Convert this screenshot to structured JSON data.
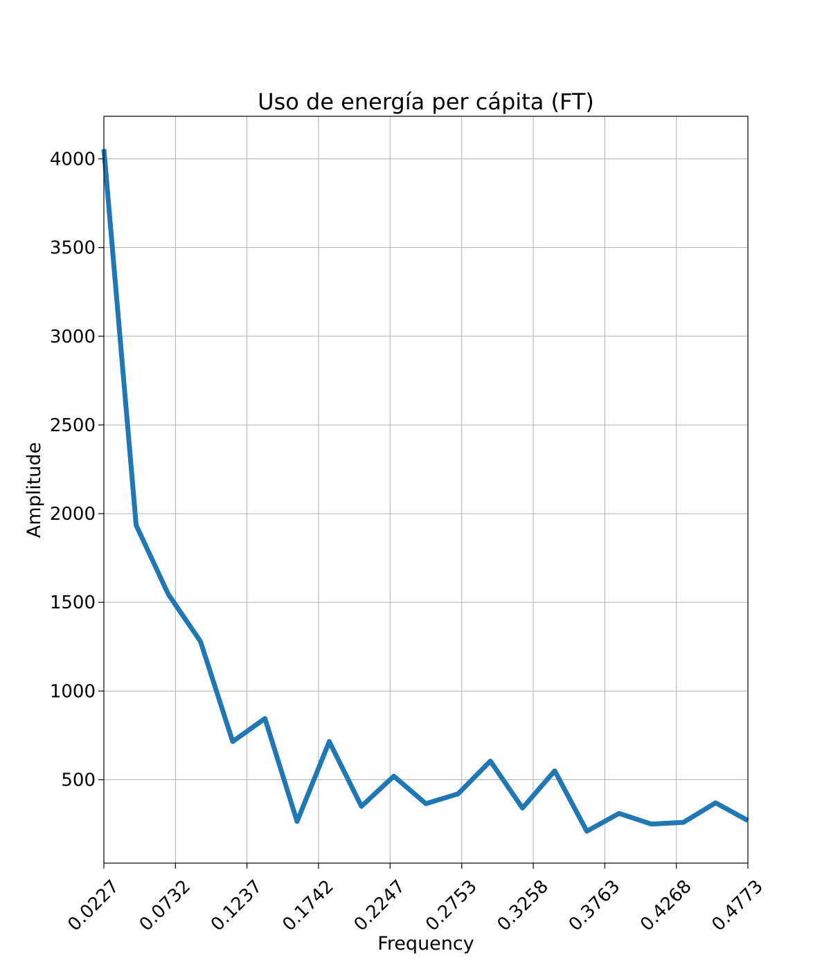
{
  "chart_data": {
    "type": "line",
    "title": "Uso de energía per cápita (FT)",
    "xlabel": "Frequency",
    "ylabel": "Amplitude",
    "xlim": [
      0.0227,
      0.4773
    ],
    "ylim": [
      30,
      4240
    ],
    "grid": true,
    "line_color": "#1f77b4",
    "x_ticks": [
      "0.0227",
      "0.0732",
      "0.1237",
      "0.1742",
      "0.2247",
      "0.2753",
      "0.3258",
      "0.3763",
      "0.4268",
      "0.4773"
    ],
    "y_ticks": [
      "500",
      "1000",
      "1500",
      "2000",
      "2500",
      "3000",
      "3500",
      "4000"
    ],
    "series": [
      {
        "x": [
          0.0227,
          0.0455,
          0.0682,
          0.0909,
          0.1136,
          0.1364,
          0.1591,
          0.1818,
          0.2045,
          0.2273,
          0.25,
          0.2727,
          0.2955,
          0.3182,
          0.3409,
          0.3636,
          0.3864,
          0.4091,
          0.4318,
          0.4545,
          0.4773
        ],
        "y": [
          4055,
          1935,
          1545,
          1280,
          715,
          845,
          265,
          715,
          350,
          520,
          365,
          420,
          605,
          340,
          550,
          210,
          310,
          250,
          260,
          370,
          270
        ]
      }
    ]
  }
}
